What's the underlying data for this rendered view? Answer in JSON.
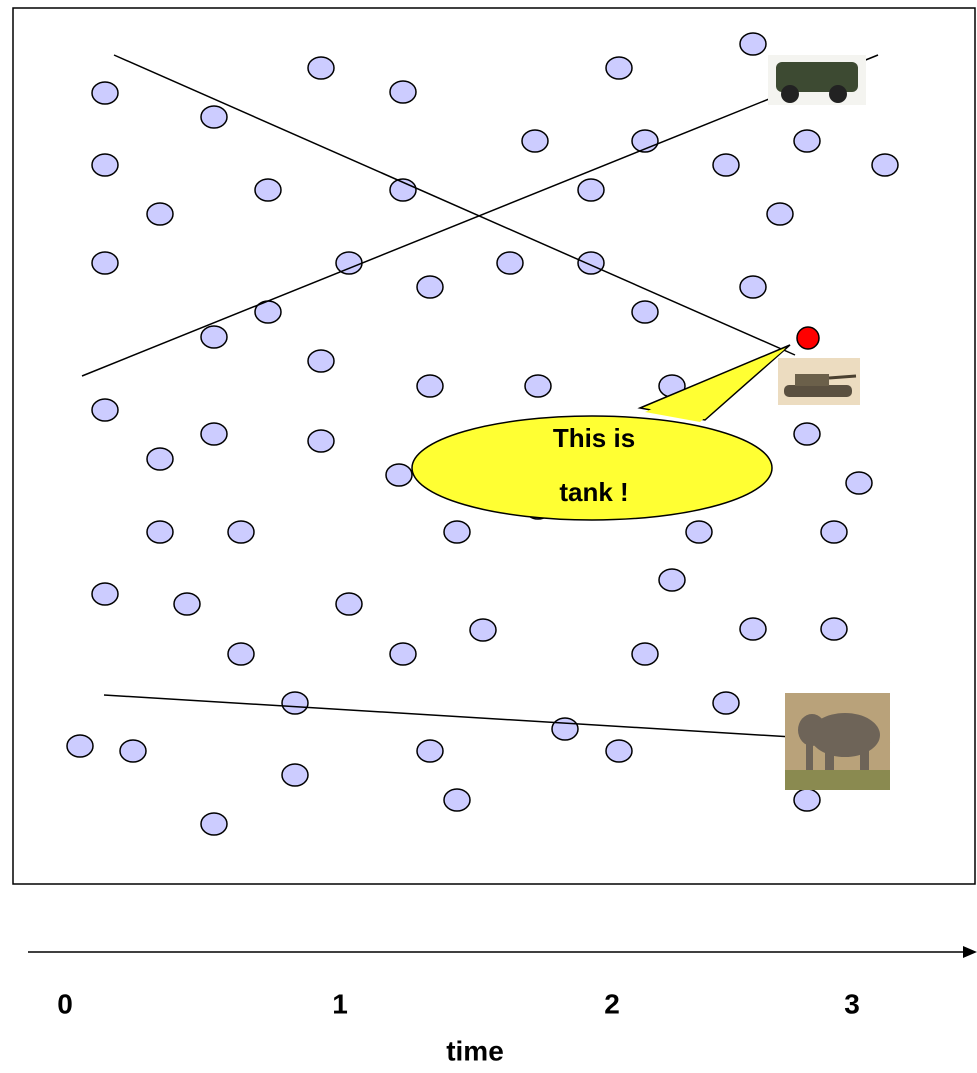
{
  "callout": {
    "text_lines": [
      "This is",
      "tank !"
    ]
  },
  "time_axis": {
    "ticks": [
      "0",
      "1",
      "2",
      "3"
    ],
    "label": "time"
  }
}
